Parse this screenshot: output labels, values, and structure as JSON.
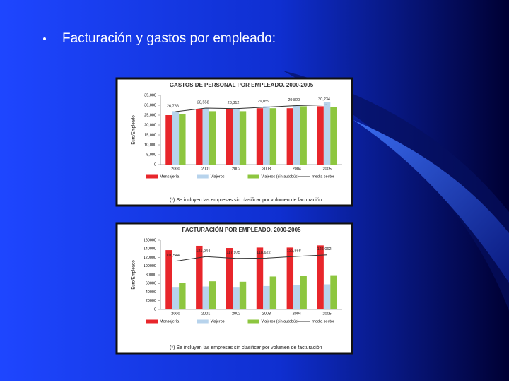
{
  "slide": {
    "title": "Facturación y gastos por empleado:"
  },
  "chart_data": [
    {
      "type": "bar",
      "title": "GASTOS DE PERSONAL POR EMPLEADO. 2000-2005",
      "y_label": "Euro/Empleado",
      "categories": [
        "2000",
        "2001",
        "2002",
        "2003",
        "2004",
        "2005"
      ],
      "series": [
        {
          "name": "Mensajería",
          "color": "#e8262b",
          "values": [
            25000,
            28000,
            28000,
            28500,
            28500,
            29500
          ]
        },
        {
          "name": "Viajeros",
          "color": "#b7d3ec",
          "values": [
            27000,
            28500,
            28500,
            29500,
            30000,
            31500
          ]
        },
        {
          "name": "Viajeros (sin autobús)",
          "color": "#8dc63f",
          "values": [
            25500,
            27000,
            27000,
            28500,
            29500,
            29000
          ]
        },
        {
          "name": "media sector",
          "type": "line",
          "color": "#333333",
          "values": [
            26786,
            28558,
            28312,
            29059,
            29820,
            30234
          ],
          "value_labels": [
            "26,786",
            "28,558",
            "28,312",
            "29,059",
            "29,820",
            "30,234"
          ]
        }
      ],
      "ylim": [
        0,
        35000
      ],
      "yticks": [
        0,
        {
          "value": 5000,
          "label": "5,000"
        },
        {
          "value": 10000,
          "label": "10,000"
        },
        {
          "value": 15000,
          "label": "15,000"
        },
        {
          "value": 20000,
          "label": "20,000"
        },
        {
          "value": 25000,
          "label": "25,000"
        },
        {
          "value": 30000,
          "label": "30,000"
        },
        {
          "value": 35000,
          "label": "35,000"
        }
      ],
      "footnote": "(*) Se incluyen las empresas sin clasificar por volumen de facturación"
    },
    {
      "type": "bar",
      "title": "FACTURACIÓN POR EMPLEADO. 2000-2005",
      "y_label": "Euro/Empleado",
      "categories": [
        "2000",
        "2001",
        "2002",
        "2003",
        "2004",
        "2005"
      ],
      "series": [
        {
          "name": "Mensajería",
          "color": "#e8262b",
          "values": [
            137000,
            147000,
            142000,
            143000,
            143000,
            148000
          ]
        },
        {
          "name": "Viajeros",
          "color": "#b7d3ec",
          "values": [
            52000,
            53000,
            52000,
            54000,
            56000,
            58000
          ]
        },
        {
          "name": "Viajeros (sin autobús)",
          "color": "#8dc63f",
          "values": [
            62000,
            65000,
            64000,
            76000,
            78000,
            79000
          ]
        },
        {
          "name": "media sector",
          "type": "line",
          "color": "#333333",
          "values": [
            111544,
            121944,
            117975,
            118622,
            122558,
            126062
          ],
          "value_labels": [
            "111,544",
            "121,944",
            "117,975",
            "118,622",
            "122,558",
            "126,062"
          ]
        }
      ],
      "ylim": [
        0,
        160000
      ],
      "yticks": [
        0,
        20000,
        40000,
        60000,
        80000,
        100000,
        120000,
        140000,
        160000
      ],
      "footnote": "(*) Se incluyen las empresas sin clasificar por volumen de facturación"
    }
  ]
}
